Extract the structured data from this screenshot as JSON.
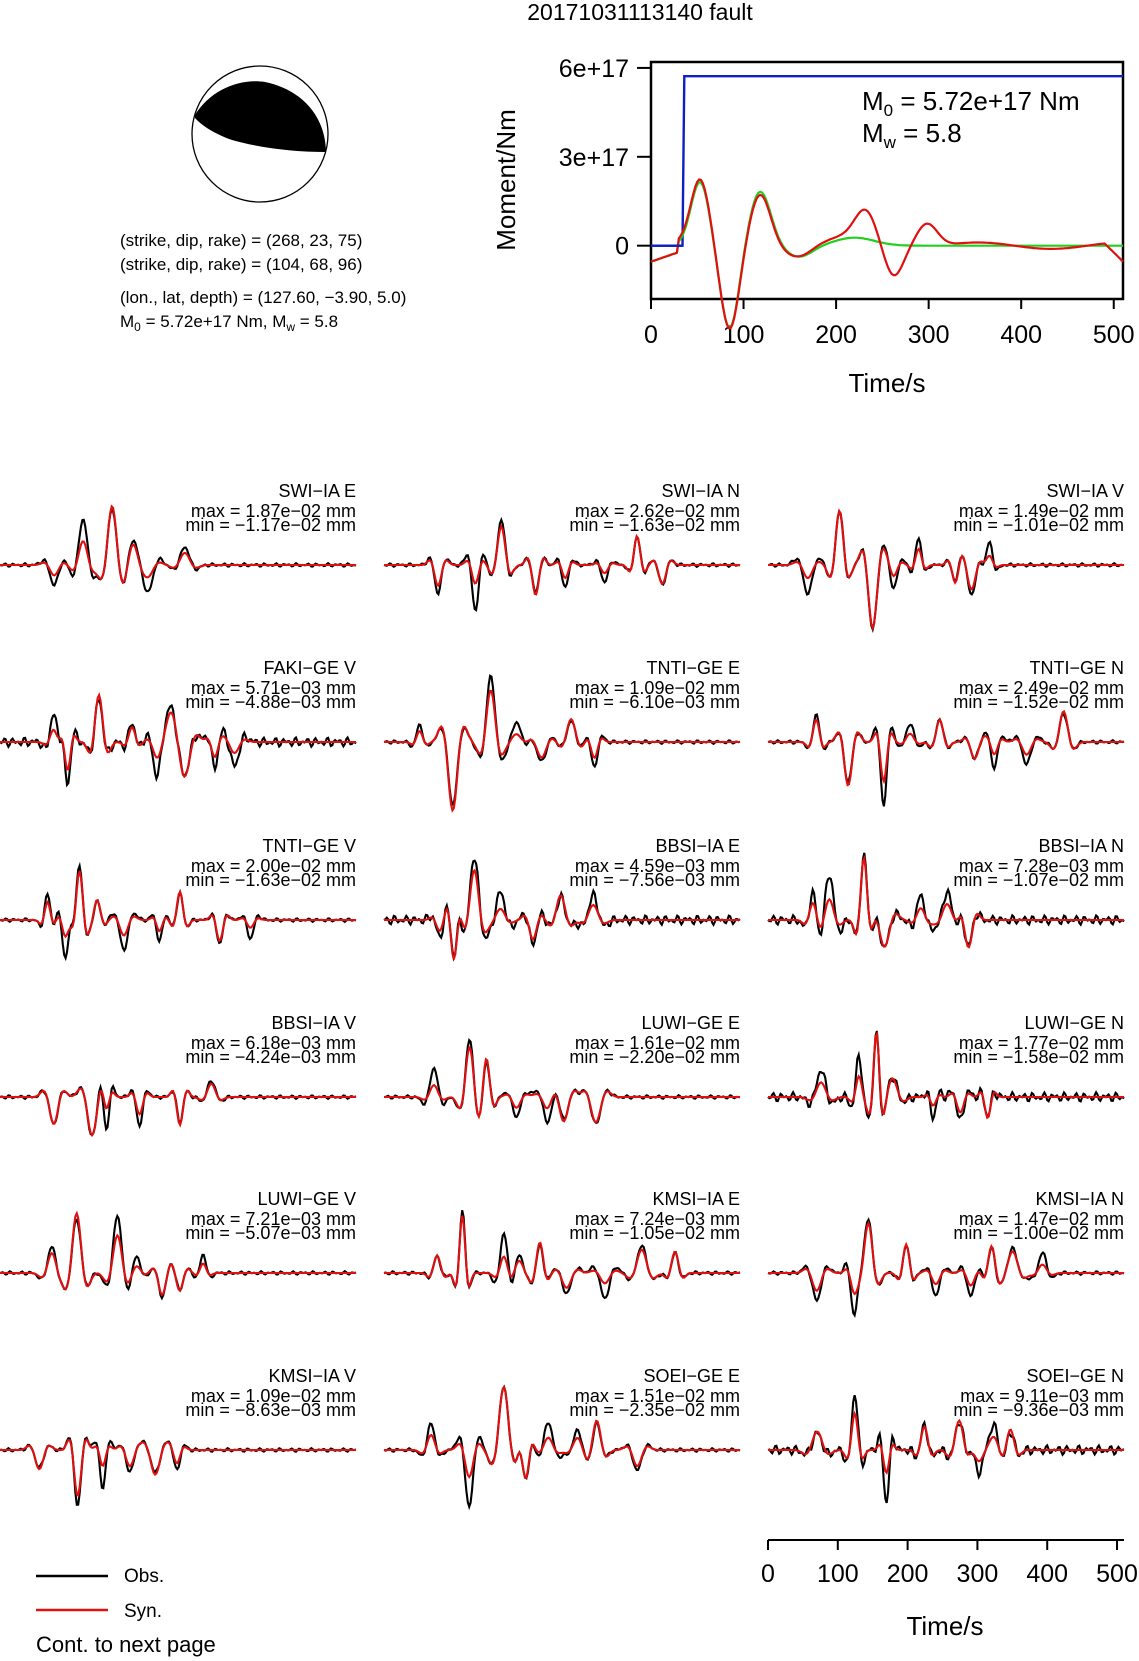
{
  "title": "20171031113140 fault",
  "colors": {
    "observed": "#000000",
    "synthetic": "#e01010",
    "moment": "#1020c0",
    "stf": "#20d020",
    "fill": "#000000"
  },
  "mechanism": {
    "nodal1": "(strike, dip, rake) = (268, 23, 75)",
    "nodal2": "(strike, dip, rake) = (104, 68, 96)",
    "location": "(lon., lat, depth) = (127.60, −3.90, 5.0)",
    "moment_prefix": "M",
    "moment_sub": "0",
    "moment_val": " = 5.72e+17 Nm, M",
    "mw_sub": "w",
    "mw_val": " = 5.8"
  },
  "chart_data": [
    {
      "type": "line",
      "name": "moment-rate",
      "ylabel": "Moment/Nm",
      "xlabel": "Time/s",
      "xlim": [
        0,
        510
      ],
      "ylim": [
        -1.8e+17,
        6.2e+17
      ],
      "yticks": [
        "6e+17",
        "3e+17",
        "0"
      ],
      "xticks": [
        "0",
        "100",
        "200",
        "300",
        "400",
        "500"
      ],
      "annotation_m0": {
        "sym": "M",
        "sub": "0",
        "val": " = 5.72e+17 Nm"
      },
      "annotation_mw": {
        "sym": "M",
        "sub": "w",
        "val": " = 5.8"
      },
      "series": [
        {
          "role": "cumulative",
          "x": [
            0,
            34,
            36,
            510
          ],
          "y": [
            0,
            0,
            5.72e+17,
            5.72e+17
          ]
        }
      ]
    },
    {
      "type": "line",
      "name": "waveform-fits",
      "xlabel": "Time/s",
      "xlim": [
        0,
        510
      ],
      "xticks": [
        "0",
        "100",
        "200",
        "300",
        "400",
        "500"
      ],
      "legend": {
        "position": "bottom-left",
        "obs": "Obs.",
        "syn": "Syn."
      },
      "footer": "Cont. to next page",
      "stations": [
        {
          "label": "SWI−IA E",
          "max": "max = 1.87e−02 mm",
          "min": "min = −1.17e−02 mm"
        },
        {
          "label": "SWI−IA N",
          "max": "max = 2.62e−02 mm",
          "min": "min = −1.63e−02 mm"
        },
        {
          "label": "SWI−IA V",
          "max": "max = 1.49e−02 mm",
          "min": "min = −1.01e−02 mm"
        },
        {
          "label": "FAKI−GE V",
          "max": "max = 5.71e−03 mm",
          "min": "min = −4.88e−03 mm"
        },
        {
          "label": "TNTI−GE E",
          "max": "max = 1.09e−02 mm",
          "min": "min = −6.10e−03 mm"
        },
        {
          "label": "TNTI−GE N",
          "max": "max = 2.49e−02 mm",
          "min": "min = −1.52e−02 mm"
        },
        {
          "label": "TNTI−GE V",
          "max": "max = 2.00e−02 mm",
          "min": "min = −1.63e−02 mm"
        },
        {
          "label": "BBSI−IA E",
          "max": "max = 4.59e−03 mm",
          "min": "min = −7.56e−03 mm"
        },
        {
          "label": "BBSI−IA N",
          "max": "max = 7.28e−03 mm",
          "min": "min = −1.07e−02 mm"
        },
        {
          "label": "BBSI−IA V",
          "max": "max = 6.18e−03 mm",
          "min": "min = −4.24e−03 mm"
        },
        {
          "label": "LUWI−GE E",
          "max": "max = 1.61e−02 mm",
          "min": "min = −2.20e−02 mm"
        },
        {
          "label": "LUWI−GE N",
          "max": "max = 1.77e−02 mm",
          "min": "min = −1.58e−02 mm"
        },
        {
          "label": "LUWI−GE V",
          "max": "max = 7.21e−03 mm",
          "min": "min = −5.07e−03 mm"
        },
        {
          "label": "KMSI−IA E",
          "max": "max = 7.24e−03 mm",
          "min": "min = −1.05e−02 mm"
        },
        {
          "label": "KMSI−IA N",
          "max": "max = 1.47e−02 mm",
          "min": "min = −1.00e−02 mm"
        },
        {
          "label": "KMSI−IA V",
          "max": "max = 1.09e−02 mm",
          "min": "min = −8.63e−03 mm"
        },
        {
          "label": "SOEI−GE E",
          "max": "max = 1.51e−02 mm",
          "min": "min = −2.35e−02 mm"
        },
        {
          "label": "SOEI−GE N",
          "max": "max = 9.11e−03 mm",
          "min": "min = −9.36e−03 mm"
        }
      ]
    }
  ]
}
